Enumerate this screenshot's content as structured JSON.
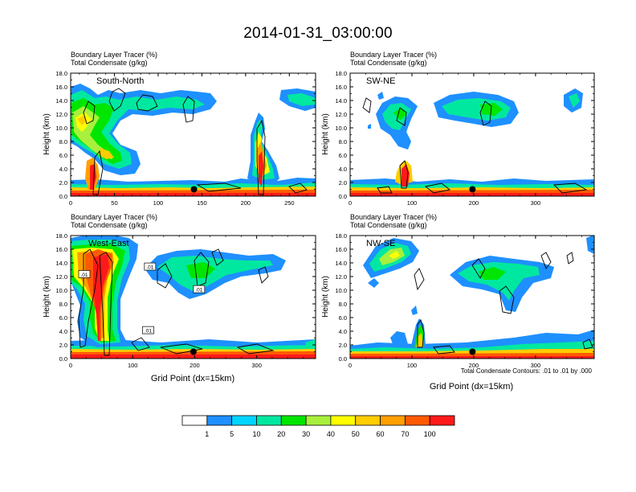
{
  "figure": {
    "title": "2014-01-31_03:00:00",
    "footnote": "Total Condensate Contours: .01 to .01 by .000"
  },
  "colorbar": {
    "colors": [
      "#ffffff",
      "#1e90ff",
      "#00d5ff",
      "#00e8a0",
      "#00e600",
      "#a8f03c",
      "#ffff00",
      "#ffcd00",
      "#ff9f00",
      "#ff5a00",
      "#ff1a1a"
    ],
    "labels": [
      "1",
      "5",
      "10",
      "20",
      "30",
      "40",
      "50",
      "60",
      "70",
      "100"
    ]
  },
  "chart_data": [
    {
      "type": "contour",
      "title_line1": "Boundary Layer Tracer   (%)",
      "title_line2": "Total Condensate   (g/kg)",
      "label": "South-North",
      "ylabel": "Height (km)",
      "xlabel": "",
      "x_ticks": [
        "0",
        "50",
        "100",
        "150",
        "200",
        "250"
      ],
      "y_ticks": [
        "0.0",
        "2.0",
        "4.0",
        "6.0",
        "8.0",
        "10.0",
        "12.0",
        "14.0",
        "16.0",
        "18.0"
      ],
      "xlim": [
        0,
        280
      ],
      "ylim": [
        0,
        18
      ],
      "marker": {
        "x": 141,
        "y": 1.0
      },
      "contour_labels": []
    },
    {
      "type": "contour",
      "title_line1": "Boundary Layer Tracer   (%)",
      "title_line2": "Total Condensate   (g/kg)",
      "label": "SW-NE",
      "ylabel": "Height (km)",
      "xlabel": "",
      "x_ticks": [
        "0",
        "100",
        "200",
        "300"
      ],
      "y_ticks": [
        "0.0",
        "2.0",
        "4.0",
        "6.0",
        "8.0",
        "10.0",
        "12.0",
        "14.0",
        "16.0",
        "18.0"
      ],
      "xlim": [
        0,
        395
      ],
      "ylim": [
        0,
        18
      ],
      "marker": {
        "x": 198,
        "y": 1.0
      },
      "contour_labels": []
    },
    {
      "type": "contour",
      "title_line1": "Boundary Layer Tracer   (%)",
      "title_line2": "Total Condensate   (g/kg)",
      "label": "West-East",
      "ylabel": "Height (km)",
      "xlabel": "Grid Point (dx=15km)",
      "x_ticks": [
        "0",
        "100",
        "200",
        "300"
      ],
      "y_ticks": [
        "0.0",
        "2.0",
        "4.0",
        "6.0",
        "8.0",
        "10.0",
        "12.0",
        "14.0",
        "16.0",
        "18.0"
      ],
      "xlim": [
        0,
        395
      ],
      "ylim": [
        0,
        18
      ],
      "marker": {
        "x": 198,
        "y": 1.0
      },
      "contour_labels": [
        {
          "text": ".01",
          "x": 22,
          "y": 12.3
        },
        {
          "text": ".01",
          "x": 128,
          "y": 13.4
        },
        {
          "text": ".01",
          "x": 207,
          "y": 10.1
        },
        {
          "text": ".01",
          "x": 125,
          "y": 4.1
        }
      ]
    },
    {
      "type": "contour",
      "title_line1": "Boundary Layer Tracer   (%)",
      "title_line2": "Total Condensate   (g/kg)",
      "label": "NW-SE",
      "ylabel": "Height (km)",
      "xlabel": "Grid Point (dx=15km)",
      "x_ticks": [
        "0",
        "100",
        "200",
        "300"
      ],
      "y_ticks": [
        "0.0",
        "2.0",
        "4.0",
        "6.0",
        "8.0",
        "10.0",
        "12.0",
        "14.0",
        "16.0",
        "18.0"
      ],
      "xlim": [
        0,
        395
      ],
      "ylim": [
        0,
        18
      ],
      "marker": {
        "x": 198,
        "y": 1.0
      },
      "contour_labels": []
    }
  ]
}
